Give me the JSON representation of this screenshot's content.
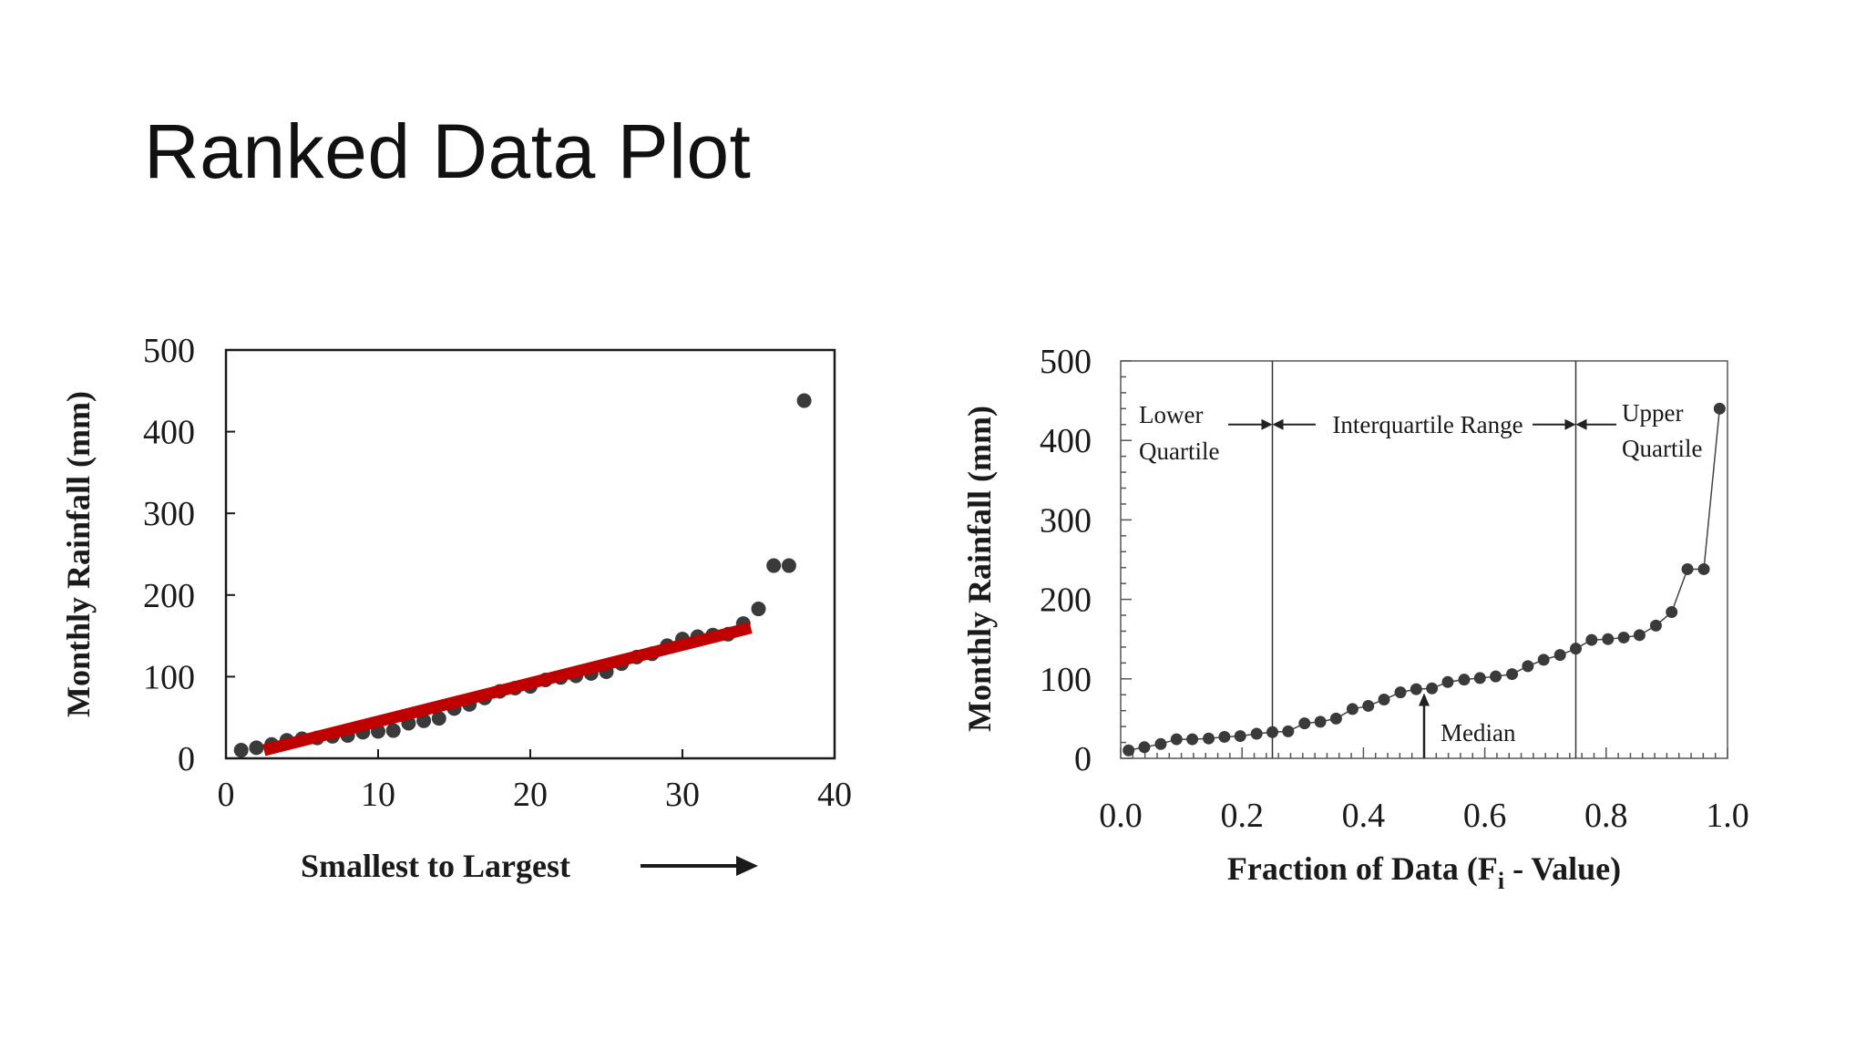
{
  "slide": {
    "title": "Ranked Data Plot"
  },
  "colors": {
    "points": "#3a3a3a",
    "trend_line": "#c00000",
    "axes": "#1a1a1a",
    "quartile_lines": "#333333"
  },
  "chart_data": [
    {
      "type": "scatter",
      "xlabel": "Smallest to Largest",
      "ylabel": "Monthly Rainfall (mm)",
      "xlim": [
        0,
        40
      ],
      "ylim": [
        0,
        500
      ],
      "xticks": [
        0,
        10,
        20,
        30,
        40
      ],
      "yticks": [
        0,
        100,
        200,
        300,
        400,
        500
      ],
      "xaxis_arrow": true,
      "grid": false,
      "points": [
        [
          1,
          10
        ],
        [
          2,
          13
        ],
        [
          3,
          17
        ],
        [
          4,
          22
        ],
        [
          5,
          24
        ],
        [
          6,
          25
        ],
        [
          7,
          27
        ],
        [
          8,
          28
        ],
        [
          9,
          32
        ],
        [
          10,
          33
        ],
        [
          11,
          34
        ],
        [
          12,
          43
        ],
        [
          13,
          46
        ],
        [
          14,
          49
        ],
        [
          15,
          61
        ],
        [
          16,
          66
        ],
        [
          17,
          74
        ],
        [
          18,
          82
        ],
        [
          19,
          86
        ],
        [
          20,
          88
        ],
        [
          21,
          96
        ],
        [
          22,
          99
        ],
        [
          23,
          101
        ],
        [
          24,
          104
        ],
        [
          25,
          106
        ],
        [
          26,
          116
        ],
        [
          27,
          124
        ],
        [
          28,
          128
        ],
        [
          29,
          138
        ],
        [
          30,
          146
        ],
        [
          31,
          149
        ],
        [
          32,
          151
        ],
        [
          33,
          152
        ],
        [
          34,
          165
        ],
        [
          35,
          183
        ],
        [
          36,
          236
        ],
        [
          37,
          236
        ],
        [
          38,
          438
        ]
      ],
      "trend_line": {
        "from": [
          2.5,
          10
        ],
        "to": [
          34.5,
          160
        ]
      }
    },
    {
      "type": "line",
      "xlabel": "Fraction of Data (F",
      "xlabel_sub": "i",
      "xlabel_tail": " - Value)",
      "ylabel": "Monthly Rainfall (mm)",
      "xlim": [
        0,
        1
      ],
      "ylim": [
        0,
        500
      ],
      "xticks": [
        "0.0",
        "0.2",
        "0.4",
        "0.6",
        "0.8",
        "1.0"
      ],
      "yticks": [
        0,
        100,
        200,
        300,
        400,
        500
      ],
      "grid": false,
      "quartile_lines": [
        0.25,
        0.75
      ],
      "annotations": {
        "lower_quartile": [
          "Lower",
          "Quartile"
        ],
        "interquartile_range": "Interquartile Range",
        "upper_quartile": [
          "Upper",
          "Quartile"
        ],
        "median": "Median",
        "median_x": 0.5,
        "range_y": 420,
        "median_arrow_y": [
          0,
          82
        ]
      },
      "points": [
        [
          0.013,
          10
        ],
        [
          0.039,
          14
        ],
        [
          0.066,
          18
        ],
        [
          0.092,
          24
        ],
        [
          0.118,
          24
        ],
        [
          0.145,
          25
        ],
        [
          0.171,
          27
        ],
        [
          0.197,
          28
        ],
        [
          0.224,
          31
        ],
        [
          0.25,
          33
        ],
        [
          0.276,
          34
        ],
        [
          0.303,
          44
        ],
        [
          0.329,
          46
        ],
        [
          0.355,
          50
        ],
        [
          0.382,
          62
        ],
        [
          0.408,
          66
        ],
        [
          0.434,
          74
        ],
        [
          0.461,
          83
        ],
        [
          0.487,
          87
        ],
        [
          0.513,
          88
        ],
        [
          0.539,
          96
        ],
        [
          0.566,
          99
        ],
        [
          0.592,
          101
        ],
        [
          0.618,
          103
        ],
        [
          0.645,
          106
        ],
        [
          0.671,
          116
        ],
        [
          0.697,
          124
        ],
        [
          0.724,
          130
        ],
        [
          0.75,
          138
        ],
        [
          0.776,
          149
        ],
        [
          0.803,
          150
        ],
        [
          0.829,
          152
        ],
        [
          0.855,
          155
        ],
        [
          0.882,
          167
        ],
        [
          0.908,
          184
        ],
        [
          0.934,
          238
        ],
        [
          0.961,
          238
        ],
        [
          0.987,
          440
        ]
      ]
    }
  ]
}
